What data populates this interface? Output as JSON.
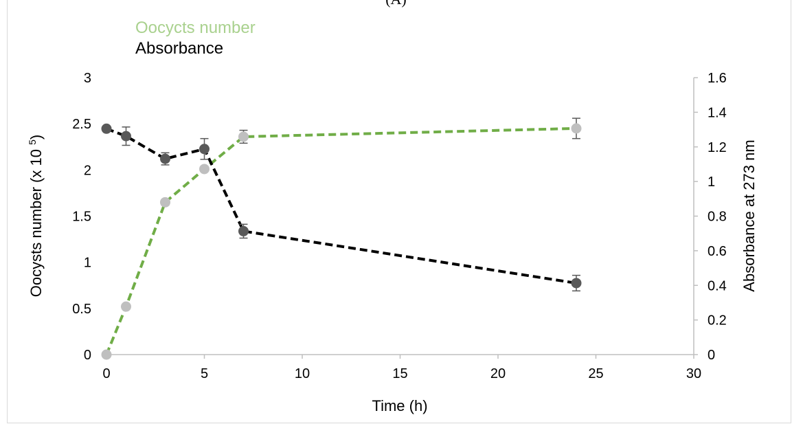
{
  "header": {
    "panel_label": "(A)"
  },
  "chart_data": {
    "type": "line",
    "title": "",
    "xlabel": "Time (h)",
    "ylabel": "Oocysts number (x 10 5)",
    "ylabel_base": "Oocysts number (x 10 ",
    "ylabel_sup": "5",
    "ylabel_end": ")",
    "y2label": "Absorbance at 273 nm",
    "xlim": [
      0,
      30
    ],
    "ylim": [
      0,
      3
    ],
    "y2lim": [
      0,
      1.6
    ],
    "xticks": [
      "0",
      "5",
      "10",
      "15",
      "20",
      "25",
      "30"
    ],
    "yticks": [
      "0",
      "0.5",
      "1",
      "1.5",
      "2",
      "2.5",
      "3"
    ],
    "y2ticks": [
      "0",
      "0.2",
      "0.4",
      "0.6",
      "0.8",
      "1",
      "1.2",
      "1.4",
      "1.6"
    ],
    "grid": false,
    "legend_position": "top-left",
    "series": [
      {
        "name": "Oocycts number",
        "axis": "left",
        "color": "#70ad47",
        "marker_color": "#bfbfbf",
        "x": [
          0,
          1,
          3,
          5,
          7,
          24
        ],
        "y": [
          0,
          0.52,
          1.65,
          2.01,
          2.36,
          2.45
        ],
        "err": [
          0,
          0,
          0.03,
          0,
          0.07,
          0.11
        ]
      },
      {
        "name": "Absorbance",
        "axis": "right",
        "color": "#000000",
        "marker_color": "#595959",
        "x": [
          0,
          1,
          3,
          5,
          7,
          24
        ],
        "y": [
          1.305,
          1.262,
          1.131,
          1.188,
          0.713,
          0.413
        ],
        "err": [
          0,
          0.053,
          0.035,
          0.06,
          0.04,
          0.045
        ]
      }
    ]
  }
}
